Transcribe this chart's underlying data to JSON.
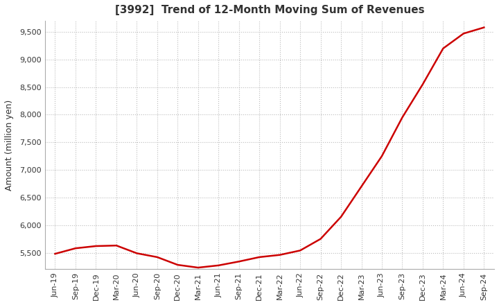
{
  "title": "[3992]  Trend of 12-Month Moving Sum of Revenues",
  "ylabel": "Amount (million yen)",
  "ylim": [
    5200,
    9700
  ],
  "yticks": [
    5500,
    6000,
    6500,
    7000,
    7500,
    8000,
    8500,
    9000,
    9500
  ],
  "line_color": "#cc0000",
  "background_color": "#ffffff",
  "grid_color": "#bbbbbb",
  "title_color": "#333333",
  "x_labels": [
    "Jun-19",
    "Sep-19",
    "Dec-19",
    "Mar-20",
    "Jun-20",
    "Sep-20",
    "Dec-20",
    "Mar-21",
    "Jun-21",
    "Sep-21",
    "Dec-21",
    "Mar-22",
    "Jun-22",
    "Sep-22",
    "Dec-22",
    "Mar-23",
    "Jun-23",
    "Sep-23",
    "Dec-23",
    "Mar-24",
    "Jun-24",
    "Sep-24"
  ],
  "values": [
    5480,
    5580,
    5620,
    5630,
    5490,
    5420,
    5280,
    5230,
    5270,
    5340,
    5420,
    5460,
    5540,
    5750,
    6150,
    6700,
    7250,
    7950,
    8550,
    9200,
    9470,
    9580
  ]
}
